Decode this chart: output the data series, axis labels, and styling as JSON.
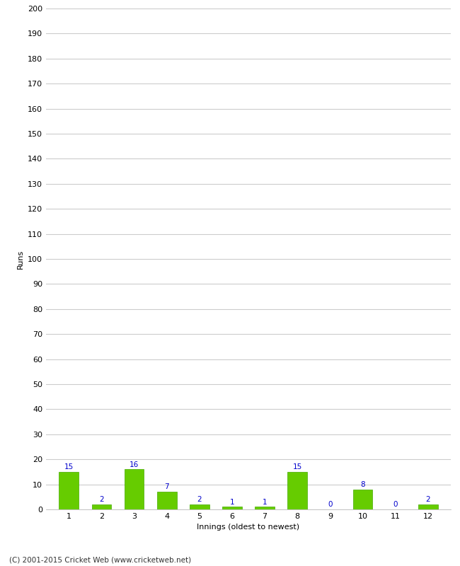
{
  "innings": [
    1,
    2,
    3,
    4,
    5,
    6,
    7,
    8,
    9,
    10,
    11,
    12
  ],
  "runs": [
    15,
    2,
    16,
    7,
    2,
    1,
    1,
    15,
    0,
    8,
    0,
    2
  ],
  "bar_color": "#66cc00",
  "bar_edge_color": "#44aa00",
  "label_color": "#0000cc",
  "xlabel": "Innings (oldest to newest)",
  "ylabel": "Runs",
  "ylim": [
    0,
    200
  ],
  "yticks": [
    0,
    10,
    20,
    30,
    40,
    50,
    60,
    70,
    80,
    90,
    100,
    110,
    120,
    130,
    140,
    150,
    160,
    170,
    180,
    190,
    200
  ],
  "footer": "(C) 2001-2015 Cricket Web (www.cricketweb.net)",
  "background_color": "#ffffff",
  "grid_color": "#cccccc",
  "label_fontsize": 7.5,
  "axis_tick_fontsize": 8,
  "axis_label_fontsize": 8,
  "footer_fontsize": 7.5
}
